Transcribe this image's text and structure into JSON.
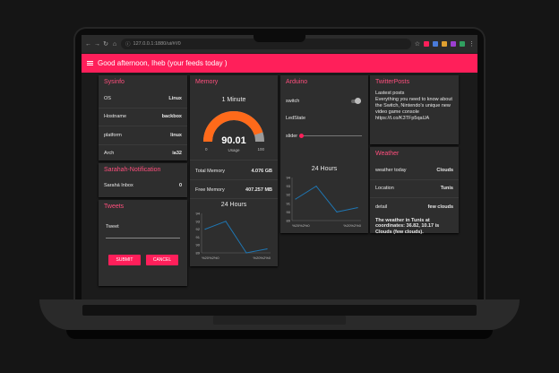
{
  "browser": {
    "url": "127.0.0.1:1880/ui/#!/0"
  },
  "app": {
    "title": "Good afternoon, Iheb (your feeds today )"
  },
  "sysinfo": {
    "title": "Sysinfo",
    "rows": [
      {
        "label": "OS",
        "value": "Linux"
      },
      {
        "label": "Hostname",
        "value": "backbox"
      },
      {
        "label": "platform",
        "value": "linux"
      },
      {
        "label": "Arch",
        "value": "ia32"
      }
    ]
  },
  "notification": {
    "title": "Sarahah-Notification",
    "label": "Sarahá Inbox",
    "value": "0"
  },
  "tweets": {
    "title": "Tweets",
    "input_label": "Tweet",
    "submit_label": "SUBMIT",
    "cancel_label": "CANCEL"
  },
  "memory": {
    "title": "Memory",
    "gauge_title": "1 Minute",
    "gauge_value": "90.01",
    "gauge_value_num": 90.01,
    "gauge_unit": "Usage",
    "gauge_min": "0",
    "gauge_max": "100",
    "total_label": "Total Memory",
    "total_value": "4.076 GB",
    "free_label": "Free Memory",
    "free_value": "407.257 MB",
    "chart_title": "24 Hours"
  },
  "arduino": {
    "title": "Arduino",
    "switch_label": "switch",
    "switch_on": false,
    "ledstate_label": "LedState",
    "slider_label": "slider",
    "slider_value": 0,
    "chart_title": "24 Hours"
  },
  "twitter": {
    "title": "TwitterPosts",
    "heading": "Lastest posts",
    "post": "Everything you need to know about the Switch, Nintendo's unique new video game console",
    "link": "https://t.co/K3TFp5qaUA"
  },
  "weather": {
    "title": "Weather",
    "rows": [
      {
        "label": "weather today",
        "value": "Clouds"
      },
      {
        "label": "Location",
        "value": "Tunis"
      },
      {
        "label": "detail",
        "value": "few clouds"
      }
    ],
    "summary": "The weather in Tunis at coordinates: 36.82, 10.17 is Clouds (few clouds)."
  },
  "chart_data": [
    {
      "type": "line",
      "name": "memory-24h",
      "title": "24 Hours",
      "x_tick_labels": [
        "%20%2%0",
        "%20%2%0"
      ],
      "y_ticks": [
        89,
        90,
        91,
        92,
        93,
        94
      ],
      "ylim": [
        89,
        94
      ],
      "values": [
        92,
        93,
        89,
        89.5
      ],
      "color": "#1f77b4"
    },
    {
      "type": "line",
      "name": "arduino-24h",
      "title": "24 Hours",
      "x_tick_labels": [
        "%20%2%0",
        "%20%2%0"
      ],
      "y_ticks": [
        89,
        90,
        91,
        92,
        93,
        94
      ],
      "ylim": [
        89,
        94
      ],
      "values": [
        91.5,
        93,
        90,
        90.5
      ],
      "color": "#1f77b4"
    }
  ],
  "colors": {
    "accent": "#ff1f5a",
    "card": "#2e2e2e",
    "title": "#ff4f7d"
  }
}
